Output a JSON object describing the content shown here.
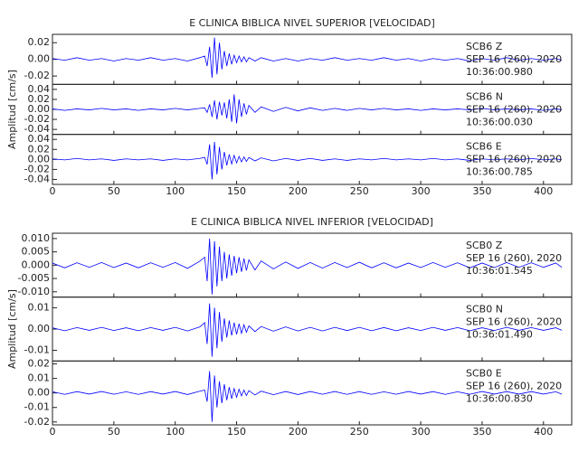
{
  "chart_data": [
    {
      "type": "line",
      "title": "E CLINICA BIBLICA NIVEL SUPERIOR [VELOCIDAD]",
      "y_label": "Amplitud [cm/s]",
      "x": [
        0,
        10,
        20,
        30,
        40,
        50,
        60,
        70,
        80,
        90,
        100,
        110,
        120,
        124,
        126,
        128,
        130,
        132,
        134,
        136,
        138,
        140,
        142,
        144,
        146,
        148,
        150,
        152,
        154,
        156,
        158,
        160,
        165,
        170,
        180,
        190,
        200,
        210,
        220,
        230,
        240,
        250,
        260,
        270,
        280,
        290,
        300,
        310,
        320,
        330,
        340,
        350,
        360,
        370,
        380,
        390,
        400,
        410,
        415
      ],
      "xlim": [
        0,
        423
      ],
      "xticks": [
        0,
        50,
        100,
        150,
        200,
        250,
        300,
        350,
        400
      ],
      "series": [
        {
          "station": "SCB6   Z",
          "date": "SEP 16 (260), 2020",
          "time": "10:36:00.980",
          "color": "#0000ff",
          "ylim": [
            -0.03,
            0.03
          ],
          "yticks": [
            -0.02,
            {
              "value": 0,
              "label": "0.00"
            },
            0.02
          ],
          "values": [
            0.001,
            -0.001,
            0.002,
            -0.001,
            0.001,
            -0.002,
            0.001,
            -0.001,
            0.002,
            -0.001,
            0.001,
            -0.002,
            0.002,
            0.004,
            -0.008,
            0.015,
            -0.022,
            0.026,
            -0.018,
            0.02,
            -0.012,
            0.01,
            -0.008,
            0.007,
            -0.006,
            0.005,
            -0.004,
            0.004,
            -0.003,
            0.003,
            -0.003,
            0.002,
            -0.002,
            0.002,
            -0.002,
            0.001,
            -0.002,
            0.001,
            -0.001,
            0.002,
            -0.001,
            0.001,
            -0.001,
            0.002,
            -0.001,
            0.001,
            -0.002,
            0.001,
            -0.001,
            0.001,
            -0.002,
            0.001,
            -0.001,
            0.002,
            -0.001,
            0.001,
            -0.001,
            0.001,
            -0.001
          ]
        },
        {
          "station": "SCB6   N",
          "date": "SEP 16 (260), 2020",
          "time": "10:36:00.030",
          "color": "#0000ff",
          "ylim": [
            -0.05,
            0.05
          ],
          "yticks": [
            -0.04,
            -0.02,
            {
              "value": 0,
              "label": "0.00"
            },
            0.02,
            0.04
          ],
          "values": [
            0.001,
            -0.002,
            0.001,
            -0.001,
            0.002,
            -0.001,
            0.001,
            -0.002,
            0.001,
            -0.001,
            0.002,
            -0.001,
            0.002,
            0.003,
            -0.006,
            0.01,
            -0.015,
            0.018,
            -0.02,
            0.015,
            -0.012,
            0.014,
            -0.018,
            0.02,
            -0.025,
            0.03,
            -0.028,
            0.02,
            -0.015,
            0.012,
            -0.01,
            0.008,
            -0.006,
            0.005,
            -0.004,
            0.004,
            -0.003,
            0.003,
            -0.002,
            0.002,
            -0.002,
            0.002,
            -0.001,
            0.002,
            -0.001,
            0.001,
            -0.002,
            0.001,
            -0.001,
            0.001,
            -0.001,
            0.002,
            -0.001,
            0.001,
            -0.001,
            0.001,
            -0.002,
            0.001,
            -0.001
          ]
        },
        {
          "station": "SCB6   E",
          "date": "SEP 16 (260), 2020",
          "time": "10:36:00.785",
          "color": "#0000ff",
          "ylim": [
            -0.05,
            0.05
          ],
          "yticks": [
            -0.04,
            -0.02,
            {
              "value": 0,
              "label": "0.00"
            },
            0.02,
            0.04
          ],
          "values": [
            0.001,
            -0.001,
            0.002,
            -0.001,
            0.001,
            -0.002,
            0.001,
            -0.001,
            0.001,
            -0.002,
            0.001,
            -0.001,
            0.002,
            0.004,
            -0.01,
            0.03,
            -0.04,
            0.035,
            -0.03,
            0.025,
            -0.02,
            0.015,
            -0.012,
            0.01,
            -0.009,
            0.008,
            -0.007,
            0.006,
            -0.005,
            0.005,
            -0.004,
            0.004,
            -0.003,
            0.003,
            -0.003,
            0.002,
            -0.002,
            0.002,
            -0.002,
            0.001,
            -0.002,
            0.001,
            -0.001,
            0.002,
            -0.001,
            0.001,
            -0.001,
            0.002,
            -0.001,
            0.001,
            -0.002,
            0.001,
            -0.001,
            0.001,
            -0.001,
            0.002,
            -0.001,
            0.001,
            -0.001
          ]
        }
      ]
    },
    {
      "type": "line",
      "title": "E CLINICA BIBLICA NIVEL INFERIOR [VELOCIDAD]",
      "y_label": "Amplitud [cm/s]",
      "x": [
        0,
        10,
        20,
        30,
        40,
        50,
        60,
        70,
        80,
        90,
        100,
        110,
        120,
        124,
        126,
        128,
        130,
        132,
        134,
        136,
        138,
        140,
        142,
        144,
        146,
        148,
        150,
        152,
        154,
        156,
        158,
        160,
        165,
        170,
        180,
        190,
        200,
        210,
        220,
        230,
        240,
        250,
        260,
        270,
        280,
        290,
        300,
        310,
        320,
        330,
        340,
        350,
        360,
        370,
        380,
        390,
        400,
        410,
        415
      ],
      "xlim": [
        0,
        423
      ],
      "xticks": [
        0,
        50,
        100,
        150,
        200,
        250,
        300,
        350,
        400
      ],
      "series": [
        {
          "station": "SCB0   Z",
          "date": "SEP 16 (260), 2020",
          "time": "10:36:01.545",
          "color": "#0000ff",
          "ylim": [
            -0.012,
            0.012
          ],
          "yticks": [
            {
              "value": -0.01,
              "label": "-0.010"
            },
            -0.005,
            {
              "value": 0,
              "label": "0.000"
            },
            0.005,
            {
              "value": 0.01,
              "label": "0.010"
            }
          ],
          "values": [
            0.0008,
            -0.001,
            0.0009,
            -0.0008,
            0.001,
            -0.0009,
            0.0008,
            -0.001,
            0.0009,
            -0.0008,
            0.001,
            -0.0012,
            0.0015,
            0.003,
            -0.006,
            0.01,
            -0.011,
            0.009,
            -0.008,
            0.007,
            -0.006,
            0.005,
            -0.005,
            0.004,
            -0.004,
            0.0035,
            -0.003,
            0.003,
            -0.0025,
            0.0025,
            -0.002,
            0.002,
            -0.0018,
            0.0016,
            -0.0014,
            0.0012,
            -0.0012,
            0.001,
            -0.0011,
            0.001,
            -0.0009,
            0.0011,
            -0.001,
            0.0009,
            -0.001,
            0.0008,
            -0.0009,
            0.001,
            -0.0008,
            0.0009,
            -0.001,
            0.0008,
            -0.0009,
            0.001,
            -0.0008,
            0.0009,
            -0.0008,
            0.0008,
            -0.0008
          ]
        },
        {
          "station": "SCB0   N",
          "date": "SEP 16 (260), 2020",
          "time": "10:36:01.490",
          "color": "#0000ff",
          "ylim": [
            -0.015,
            0.015
          ],
          "yticks": [
            -0.01,
            {
              "value": 0,
              "label": "0.00"
            },
            0.01
          ],
          "values": [
            0.0006,
            -0.0008,
            0.0007,
            -0.0006,
            0.0008,
            -0.0007,
            0.0006,
            -0.0008,
            0.0007,
            -0.0006,
            0.0008,
            -0.0009,
            0.001,
            0.003,
            -0.007,
            0.012,
            -0.013,
            0.01,
            -0.009,
            0.008,
            -0.006,
            0.005,
            -0.004,
            0.004,
            -0.003,
            0.003,
            -0.0025,
            0.0025,
            -0.002,
            0.002,
            -0.0015,
            0.0015,
            -0.0012,
            0.0012,
            -0.001,
            0.001,
            -0.0009,
            0.0008,
            -0.0009,
            0.0008,
            -0.0007,
            0.0008,
            -0.0008,
            0.0007,
            -0.0008,
            0.0006,
            -0.0007,
            0.0008,
            -0.0006,
            0.0007,
            -0.0008,
            0.0006,
            -0.0007,
            0.0008,
            -0.0006,
            0.0007,
            -0.0006,
            0.0006,
            -0.0006
          ]
        },
        {
          "station": "SCB0   E",
          "date": "SEP 16 (260), 2020",
          "time": "10:36:00.830",
          "color": "#0000ff",
          "ylim": [
            -0.022,
            0.022
          ],
          "yticks": [
            -0.02,
            -0.01,
            {
              "value": 0,
              "label": "0.00"
            },
            0.01,
            0.02
          ],
          "values": [
            0.0008,
            -0.001,
            0.0009,
            -0.0008,
            0.001,
            -0.0009,
            0.0008,
            -0.001,
            0.0009,
            -0.0008,
            0.001,
            -0.0011,
            0.0012,
            0.002,
            -0.006,
            0.015,
            -0.02,
            0.012,
            -0.01,
            0.008,
            -0.007,
            0.006,
            -0.005,
            0.004,
            -0.004,
            0.003,
            -0.003,
            0.0025,
            -0.002,
            0.002,
            -0.0018,
            0.0016,
            -0.0014,
            0.0012,
            -0.0012,
            0.001,
            -0.0011,
            0.001,
            -0.0009,
            0.001,
            -0.001,
            0.0009,
            -0.001,
            0.0008,
            -0.0009,
            0.001,
            -0.0008,
            0.0009,
            -0.001,
            0.0008,
            -0.0009,
            0.001,
            -0.0008,
            0.0009,
            -0.0008,
            0.0009,
            -0.0008,
            0.0008,
            -0.0008
          ]
        }
      ]
    }
  ]
}
